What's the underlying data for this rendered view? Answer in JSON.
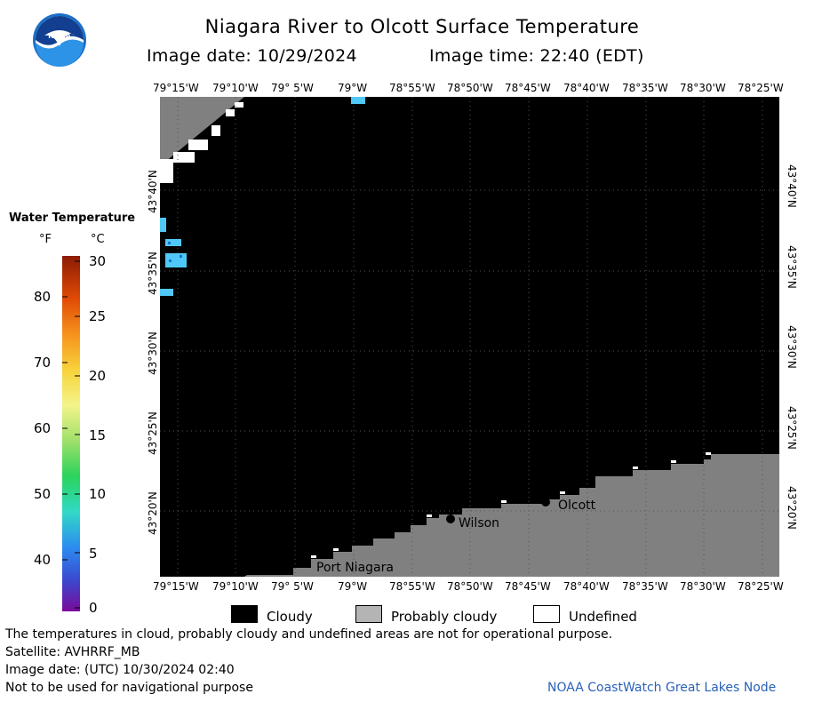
{
  "header": {
    "title": "Niagara River to Olcott Surface Temperature",
    "image_date_label": "Image date: 10/29/2024",
    "image_time_label": "Image time: 22:40 (EDT)"
  },
  "logo": {
    "text": "NOAA",
    "icon": "noaa-logo-icon"
  },
  "map": {
    "lon_labels": [
      "79°15'W",
      "79°10'W",
      "79° 5'W",
      "79°W",
      "78°55'W",
      "78°50'W",
      "78°45'W",
      "78°40'W",
      "78°35'W",
      "78°30'W",
      "78°25'W"
    ],
    "lat_labels": [
      "43°40'N",
      "43°35'N",
      "43°30'N",
      "43°25'N",
      "43°20'N"
    ],
    "places": [
      {
        "name": "Olcott"
      },
      {
        "name": "Wilson"
      },
      {
        "name": "Port Niagara"
      }
    ],
    "colors": {
      "cloudy": "#000000",
      "land": "#808080",
      "undefined": "#ffffff",
      "water_cold": "#4fc8f5"
    }
  },
  "legend": {
    "title": "Water Temperature",
    "unit_f": "°F",
    "unit_c": "°C",
    "f_ticks": [
      "80",
      "70",
      "60",
      "50",
      "40"
    ],
    "c_ticks": [
      "30",
      "25",
      "20",
      "15",
      "10",
      "5",
      "0"
    ]
  },
  "key": {
    "cloudy": "Cloudy",
    "probably_cloudy": "Probably cloudy",
    "undefined": "Undefined"
  },
  "footer": {
    "disclaimer": "The temperatures in cloud, probably cloudy and undefined areas are not for operational purpose.",
    "satellite": "Satellite: AVHRRF_MB",
    "utc_date": "Image date: (UTC) 10/30/2024  02:40",
    "nav_warning": "Not to be used for navigational purpose",
    "credit": "NOAA CoastWatch Great Lakes Node"
  }
}
